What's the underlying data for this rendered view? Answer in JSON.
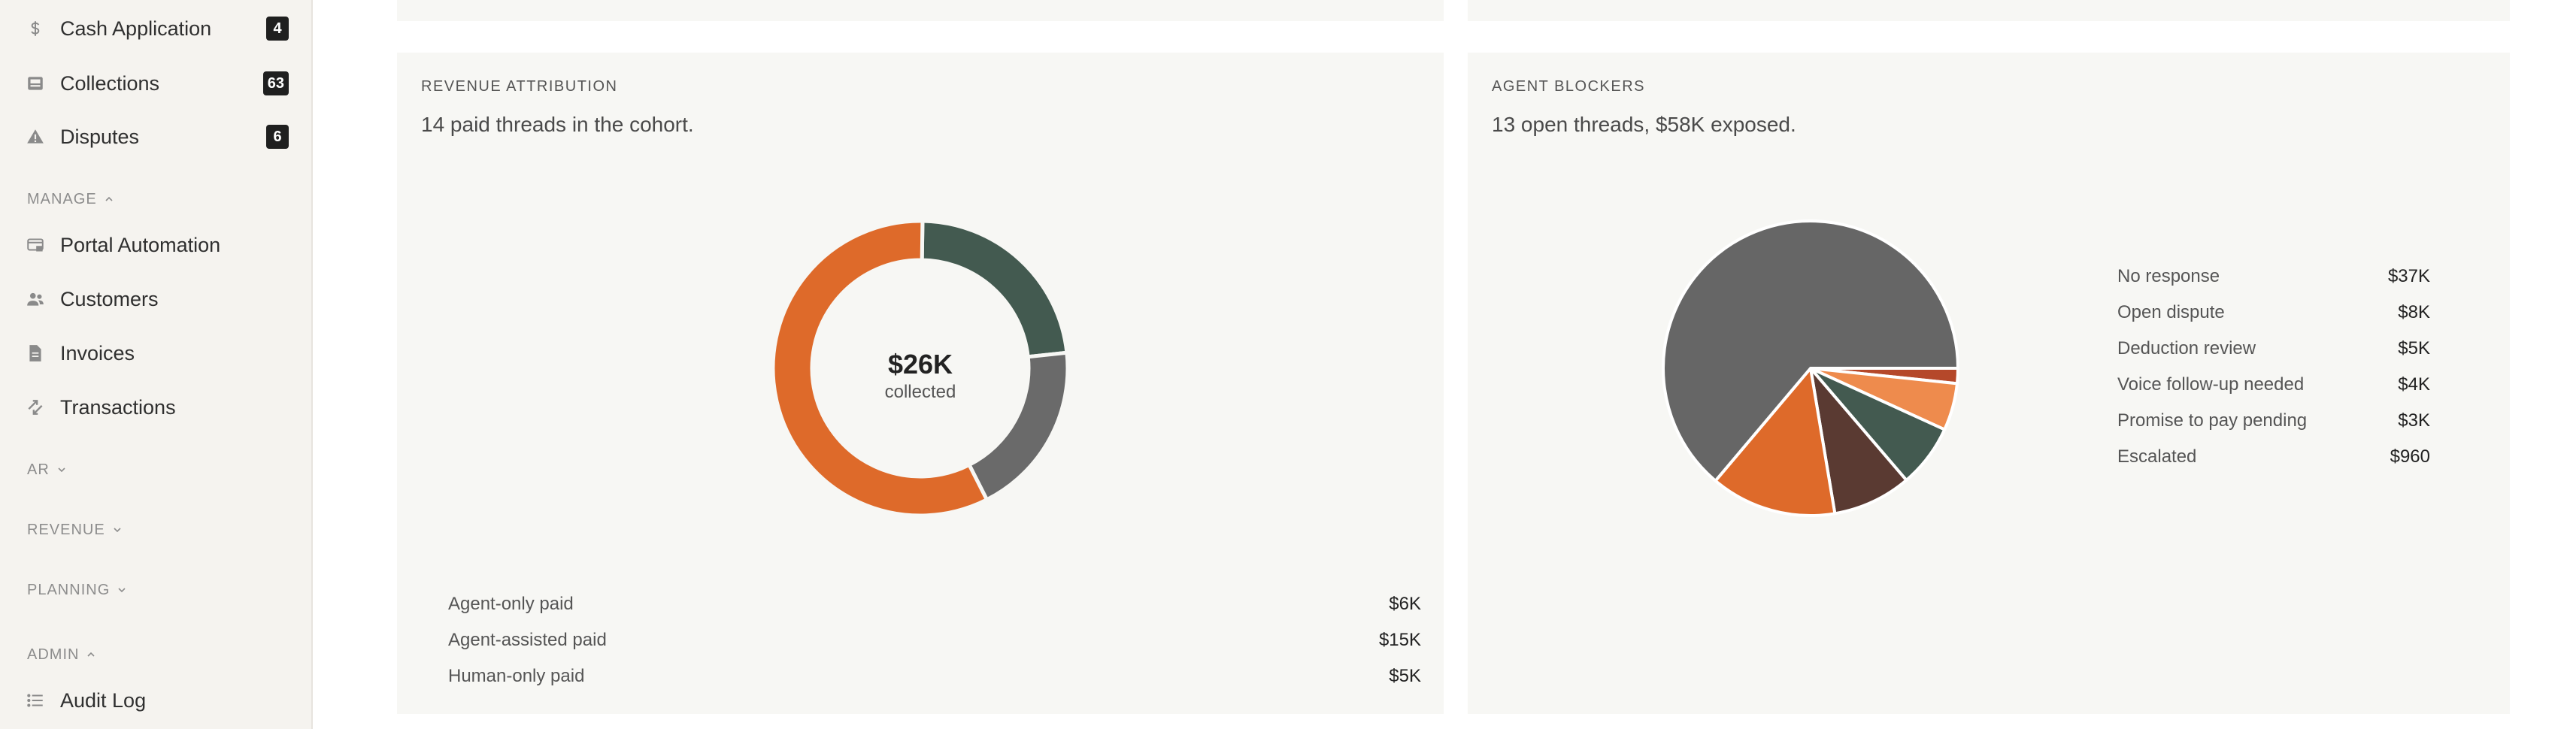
{
  "sidebar": {
    "items_top": [
      {
        "label": "Cash Application",
        "badge": "4",
        "icon": "dollar-icon"
      },
      {
        "label": "Collections",
        "badge": "63",
        "icon": "inbox-icon"
      },
      {
        "label": "Disputes",
        "badge": "6",
        "icon": "warning-icon"
      }
    ],
    "sections": {
      "manage": "MANAGE",
      "ar": "AR",
      "revenue": "REVENUE",
      "planning": "PLANNING",
      "admin": "ADMIN"
    },
    "manage_items": [
      {
        "label": "Portal Automation",
        "icon": "browser-icon"
      },
      {
        "label": "Customers",
        "icon": "users-icon"
      },
      {
        "label": "Invoices",
        "icon": "document-icon"
      },
      {
        "label": "Transactions",
        "icon": "transfer-icon"
      }
    ],
    "admin_items": [
      {
        "label": "Audit Log",
        "icon": "list-icon"
      }
    ]
  },
  "revenue_card": {
    "title": "REVENUE ATTRIBUTION",
    "subtitle": "14 paid threads in the cohort.",
    "center_value": "$26K",
    "center_label": "collected",
    "legend": [
      {
        "label": "Agent-only paid",
        "value": "$6K"
      },
      {
        "label": "Agent-assisted paid",
        "value": "$15K"
      },
      {
        "label": "Human-only paid",
        "value": "$5K"
      }
    ]
  },
  "blockers_card": {
    "title": "AGENT BLOCKERS",
    "subtitle": "13 open threads, $58K exposed.",
    "legend": [
      {
        "label": "No response",
        "value": "$37K"
      },
      {
        "label": "Open dispute",
        "value": "$8K"
      },
      {
        "label": "Deduction review",
        "value": "$5K"
      },
      {
        "label": "Voice follow-up needed",
        "value": "$4K"
      },
      {
        "label": "Promise to pay pending",
        "value": "$3K"
      },
      {
        "label": "Escalated",
        "value": "$960"
      }
    ]
  },
  "chart_data": [
    {
      "type": "pie",
      "variant": "donut",
      "categories": [
        "Agent-only paid",
        "Agent-assisted paid",
        "Human-only paid"
      ],
      "values": [
        6,
        15,
        5
      ],
      "unit": "$K",
      "colors": [
        "#435a50",
        "#de6a2a",
        "#6a6a6a"
      ],
      "slice_order": [
        "Agent-only paid",
        "Human-only paid",
        "Agent-assisted paid"
      ],
      "slice_colors": [
        "#435a50",
        "#6a6a6a",
        "#de6a2a"
      ],
      "slice_values": [
        6,
        5,
        15
      ]
    },
    {
      "type": "pie",
      "categories": [
        "No response",
        "Open dispute",
        "Deduction review",
        "Voice follow-up needed",
        "Promise to pay pending",
        "Escalated"
      ],
      "values": [
        37,
        8,
        5,
        4,
        3,
        0.96
      ],
      "unit": "$K",
      "slice_order": [
        "Escalated",
        "Promise to pay pending",
        "Voice follow-up needed",
        "Deduction review",
        "Open dispute",
        "No response"
      ],
      "slice_values": [
        0.96,
        3,
        4,
        5,
        8,
        37
      ],
      "slice_colors": [
        "#b5482a",
        "#ee8b4d",
        "#435a50",
        "#5a3a32",
        "#de6a2a",
        "#666666"
      ]
    }
  ]
}
